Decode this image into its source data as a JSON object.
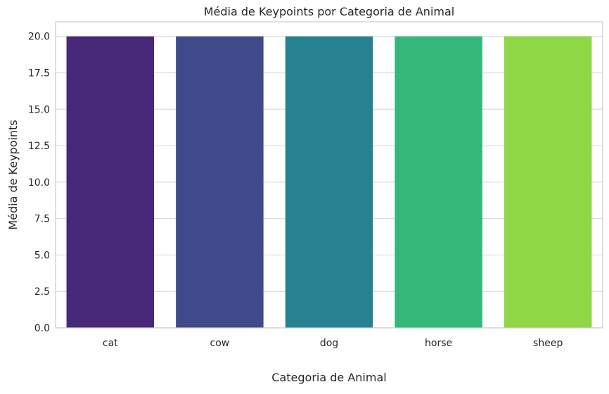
{
  "chart_data": {
    "type": "bar",
    "title": "Média de Keypoints por Categoria de Animal",
    "xlabel": "Categoria de Animal",
    "ylabel": "Média de Keypoints",
    "categories": [
      "cat",
      "cow",
      "dog",
      "horse",
      "sheep"
    ],
    "values": [
      20.0,
      20.0,
      20.0,
      20.0,
      20.0
    ],
    "colors": [
      "#482878",
      "#3E4A89",
      "#26828E",
      "#35B779",
      "#8FD744"
    ],
    "ylim": [
      0,
      21
    ],
    "yticks": [
      "0.0",
      "2.5",
      "5.0",
      "7.5",
      "10.0",
      "12.5",
      "15.0",
      "17.5",
      "20.0"
    ],
    "grid": true,
    "legend": false
  }
}
